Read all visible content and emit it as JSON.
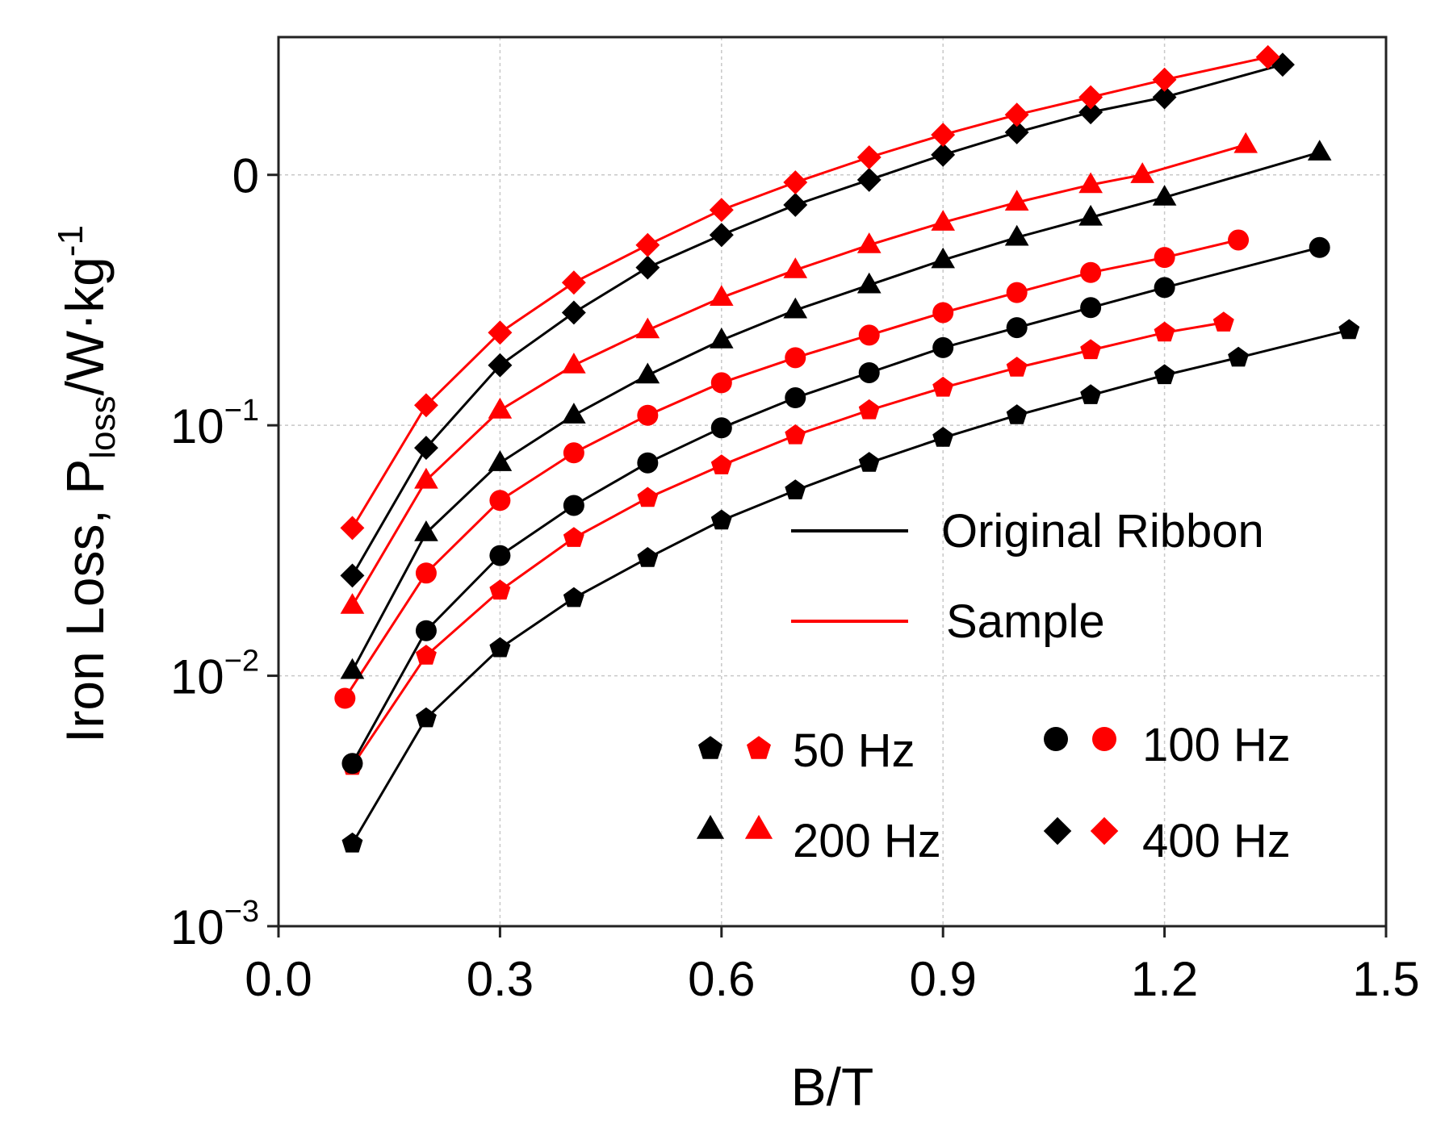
{
  "chart_data": {
    "type": "line",
    "xlabel": "B/T",
    "ylabel": {
      "main": "Iron Loss,  P",
      "sub": "loss",
      "unit": "/W·kg",
      "sup": "-1"
    },
    "xlim": [
      0.0,
      1.5
    ],
    "ylim_log10": [
      -3,
      0.55
    ],
    "x_ticks": [
      "0.0",
      "0.3",
      "0.6",
      "0.9",
      "1.2",
      "1.5"
    ],
    "y_ticks": [
      {
        "value": 0,
        "label": "0",
        "base": "",
        "exp": ""
      },
      {
        "value": -1,
        "label": "",
        "base": "10",
        "exp": "−1"
      },
      {
        "value": -2,
        "label": "",
        "base": "10",
        "exp": "−2"
      },
      {
        "value": -3,
        "label": "",
        "base": "10",
        "exp": "−3"
      }
    ],
    "grid": true,
    "colors": {
      "original": "#000000",
      "sample": "#ff0000"
    },
    "legend": {
      "lines": [
        {
          "label": "Original Ribbon",
          "color": "#000000"
        },
        {
          "label": "Sample",
          "color": "#ff0000"
        }
      ],
      "markers": [
        {
          "label": "50 Hz",
          "marker": "pentagon"
        },
        {
          "label": "100 Hz",
          "marker": "circle"
        },
        {
          "label": "200 Hz",
          "marker": "triangle"
        },
        {
          "label": "400 Hz",
          "marker": "diamond"
        }
      ]
    },
    "series": [
      {
        "name": "Original 50 Hz",
        "group": "original",
        "marker": "pentagon",
        "x": [
          0.1,
          0.2,
          0.3,
          0.4,
          0.5,
          0.6,
          0.7,
          0.8,
          0.9,
          1.0,
          1.1,
          1.2,
          1.3,
          1.45
        ],
        "y": [
          -2.67,
          -2.17,
          -1.89,
          -1.69,
          -1.53,
          -1.38,
          -1.26,
          -1.15,
          -1.05,
          -0.96,
          -0.88,
          -0.8,
          -0.73,
          -0.62
        ]
      },
      {
        "name": "Sample 50 Hz",
        "group": "sample",
        "marker": "pentagon",
        "x": [
          0.1,
          0.2,
          0.3,
          0.4,
          0.5,
          0.6,
          0.7,
          0.8,
          0.9,
          1.0,
          1.1,
          1.2,
          1.28
        ],
        "y": [
          -2.36,
          -1.92,
          -1.66,
          -1.45,
          -1.29,
          -1.16,
          -1.04,
          -0.94,
          -0.85,
          -0.77,
          -0.7,
          -0.63,
          -0.59
        ]
      },
      {
        "name": "Original 100 Hz",
        "group": "original",
        "marker": "circle",
        "x": [
          0.1,
          0.2,
          0.3,
          0.4,
          0.5,
          0.6,
          0.7,
          0.8,
          0.9,
          1.0,
          1.1,
          1.2,
          1.41
        ],
        "y": [
          -2.35,
          -1.82,
          -1.52,
          -1.32,
          -1.15,
          -1.01,
          -0.89,
          -0.79,
          -0.69,
          -0.61,
          -0.53,
          -0.45,
          -0.29
        ]
      },
      {
        "name": "Sample 100 Hz",
        "group": "sample",
        "marker": "circle",
        "x": [
          0.09,
          0.2,
          0.3,
          0.4,
          0.5,
          0.6,
          0.7,
          0.8,
          0.9,
          1.0,
          1.1,
          1.2,
          1.3
        ],
        "y": [
          -2.09,
          -1.59,
          -1.3,
          -1.11,
          -0.96,
          -0.83,
          -0.73,
          -0.64,
          -0.55,
          -0.47,
          -0.39,
          -0.33,
          -0.26
        ]
      },
      {
        "name": "Original 200 Hz",
        "group": "original",
        "marker": "triangle",
        "x": [
          0.1,
          0.2,
          0.3,
          0.4,
          0.5,
          0.6,
          0.7,
          0.8,
          0.9,
          1.0,
          1.1,
          1.2,
          1.41
        ],
        "y": [
          -1.98,
          -1.43,
          -1.15,
          -0.96,
          -0.8,
          -0.66,
          -0.54,
          -0.44,
          -0.34,
          -0.25,
          -0.17,
          -0.09,
          0.09
        ]
      },
      {
        "name": "Sample 200 Hz",
        "group": "sample",
        "marker": "triangle",
        "x": [
          0.1,
          0.2,
          0.3,
          0.4,
          0.5,
          0.6,
          0.7,
          0.8,
          0.9,
          1.0,
          1.1,
          1.17,
          1.31
        ],
        "y": [
          -1.72,
          -1.22,
          -0.94,
          -0.76,
          -0.62,
          -0.49,
          -0.38,
          -0.28,
          -0.19,
          -0.11,
          -0.04,
          0.0,
          0.12
        ]
      },
      {
        "name": "Original 400 Hz",
        "group": "original",
        "marker": "diamond",
        "x": [
          0.1,
          0.2,
          0.3,
          0.4,
          0.5,
          0.6,
          0.7,
          0.8,
          0.9,
          1.0,
          1.1,
          1.2,
          1.36
        ],
        "y": [
          -1.6,
          -1.09,
          -0.76,
          -0.55,
          -0.37,
          -0.24,
          -0.12,
          -0.02,
          0.08,
          0.17,
          0.25,
          0.31,
          0.44
        ]
      },
      {
        "name": "Sample 400 Hz",
        "group": "sample",
        "marker": "diamond",
        "x": [
          0.1,
          0.2,
          0.3,
          0.4,
          0.5,
          0.6,
          0.7,
          0.8,
          0.9,
          1.0,
          1.1,
          1.2,
          1.34
        ],
        "y": [
          -1.41,
          -0.92,
          -0.63,
          -0.43,
          -0.28,
          -0.14,
          -0.03,
          0.07,
          0.16,
          0.24,
          0.31,
          0.38,
          0.47
        ]
      }
    ]
  }
}
